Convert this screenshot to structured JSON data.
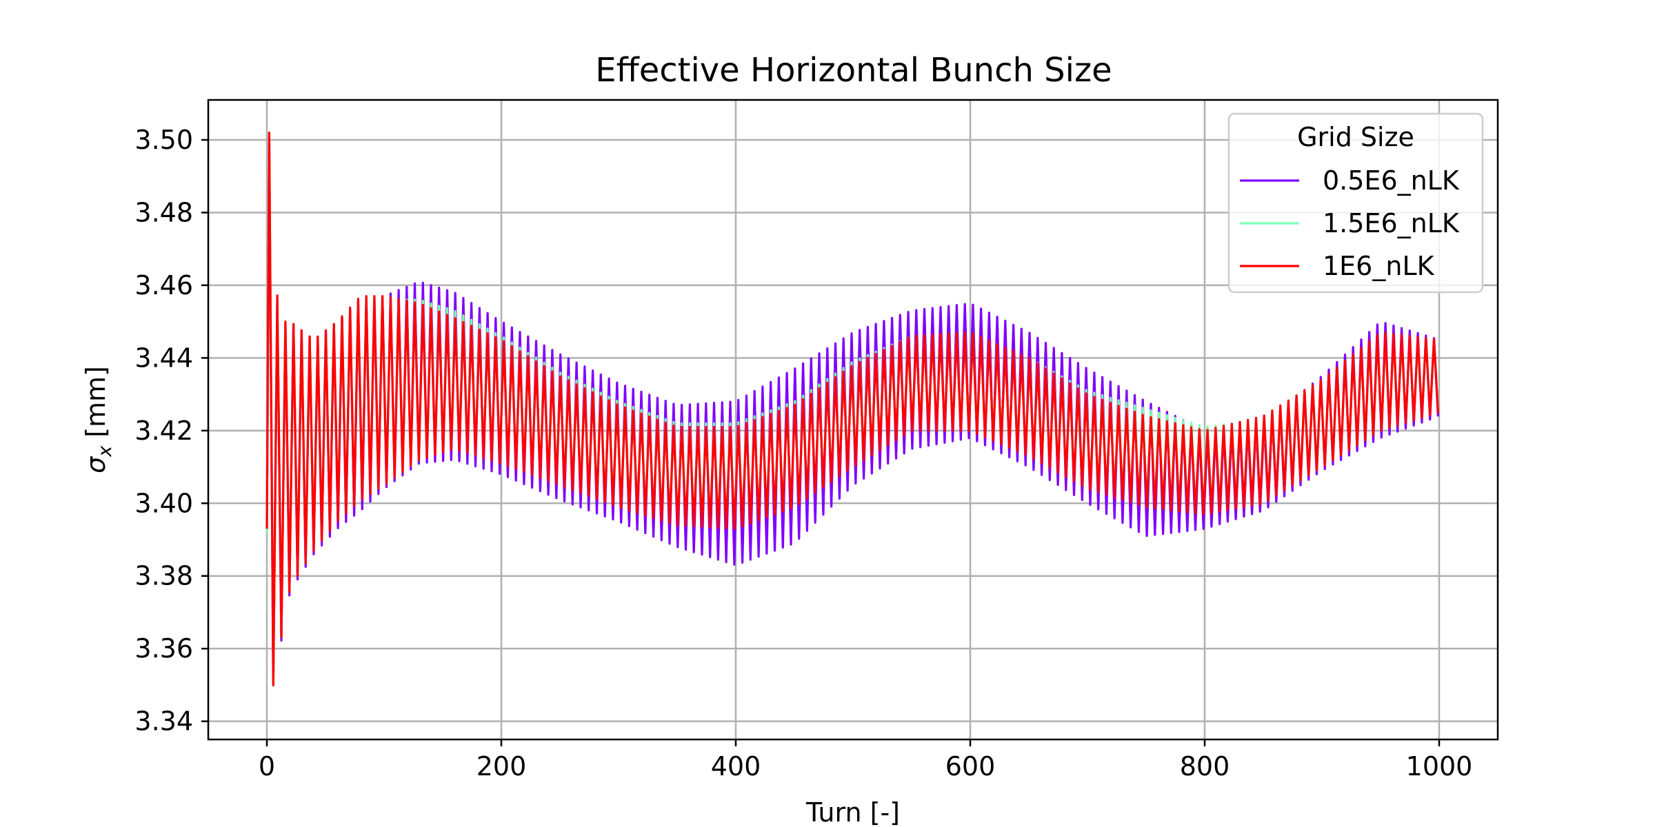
{
  "chart_data": {
    "type": "line",
    "title": "Effective Horizontal Bunch Size",
    "xlabel": "Turn [-]",
    "ylabel_symbol": "σ",
    "ylabel_sub": "x",
    "ylabel_unit": "[mm]",
    "xlim": [
      -50,
      1050
    ],
    "ylim": [
      3.335,
      3.511
    ],
    "xticks": [
      0,
      200,
      400,
      600,
      800,
      1000
    ],
    "xtick_labels": [
      "0",
      "200",
      "400",
      "600",
      "800",
      "1000"
    ],
    "yticks": [
      3.34,
      3.36,
      3.38,
      3.4,
      3.42,
      3.44,
      3.46,
      3.48,
      3.5
    ],
    "ytick_labels": [
      "3.34",
      "3.36",
      "3.38",
      "3.40",
      "3.42",
      "3.44",
      "3.46",
      "3.48",
      "3.50"
    ],
    "grid": true,
    "legend": {
      "title": "Grid Size",
      "placement": "top-right"
    },
    "oscillation_period_turns": 6.9,
    "series": [
      {
        "name": "0.5E6_nLK",
        "color": "#7f00ff",
        "start": {
          "x": 0,
          "y": 3.392
        },
        "envelope": [
          {
            "x": 2,
            "upper": 3.5,
            "lower": 3.345
          },
          {
            "x": 10,
            "upper": 3.449,
            "lower": 3.358
          },
          {
            "x": 20,
            "upper": 3.45,
            "lower": 3.376
          },
          {
            "x": 40,
            "upper": 3.445,
            "lower": 3.386
          },
          {
            "x": 60,
            "upper": 3.45,
            "lower": 3.393
          },
          {
            "x": 80,
            "upper": 3.456,
            "lower": 3.398
          },
          {
            "x": 100,
            "upper": 3.457,
            "lower": 3.404
          },
          {
            "x": 130,
            "upper": 3.461,
            "lower": 3.411
          },
          {
            "x": 160,
            "upper": 3.458,
            "lower": 3.412
          },
          {
            "x": 200,
            "upper": 3.45,
            "lower": 3.408
          },
          {
            "x": 250,
            "upper": 3.441,
            "lower": 3.401
          },
          {
            "x": 300,
            "upper": 3.433,
            "lower": 3.395
          },
          {
            "x": 350,
            "upper": 3.427,
            "lower": 3.388
          },
          {
            "x": 400,
            "upper": 3.428,
            "lower": 3.383
          },
          {
            "x": 450,
            "upper": 3.437,
            "lower": 3.389
          },
          {
            "x": 500,
            "upper": 3.447,
            "lower": 3.405
          },
          {
            "x": 550,
            "upper": 3.453,
            "lower": 3.415
          },
          {
            "x": 600,
            "upper": 3.455,
            "lower": 3.418
          },
          {
            "x": 650,
            "upper": 3.447,
            "lower": 3.41
          },
          {
            "x": 700,
            "upper": 3.437,
            "lower": 3.4
          },
          {
            "x": 750,
            "upper": 3.428,
            "lower": 3.391
          },
          {
            "x": 800,
            "upper": 3.42,
            "lower": 3.393
          },
          {
            "x": 850,
            "upper": 3.422,
            "lower": 3.398
          },
          {
            "x": 900,
            "upper": 3.435,
            "lower": 3.409
          },
          {
            "x": 950,
            "upper": 3.45,
            "lower": 3.418
          },
          {
            "x": 1000,
            "upper": 3.445,
            "lower": 3.424
          }
        ]
      },
      {
        "name": "1.5E6_nLK",
        "color": "#80ffb4",
        "start": {
          "x": 0,
          "y": 3.392
        },
        "envelope": [
          {
            "x": 2,
            "upper": 3.501,
            "lower": 3.344
          },
          {
            "x": 10,
            "upper": 3.448,
            "lower": 3.36
          },
          {
            "x": 20,
            "upper": 3.449,
            "lower": 3.378
          },
          {
            "x": 40,
            "upper": 3.444,
            "lower": 3.388
          },
          {
            "x": 60,
            "upper": 3.449,
            "lower": 3.396
          },
          {
            "x": 80,
            "upper": 3.455,
            "lower": 3.402
          },
          {
            "x": 100,
            "upper": 3.456,
            "lower": 3.406
          },
          {
            "x": 130,
            "upper": 3.456,
            "lower": 3.412
          },
          {
            "x": 160,
            "upper": 3.453,
            "lower": 3.416
          },
          {
            "x": 200,
            "upper": 3.446,
            "lower": 3.412
          },
          {
            "x": 250,
            "upper": 3.436,
            "lower": 3.406
          },
          {
            "x": 300,
            "upper": 3.428,
            "lower": 3.4
          },
          {
            "x": 350,
            "upper": 3.422,
            "lower": 3.395
          },
          {
            "x": 400,
            "upper": 3.422,
            "lower": 3.394
          },
          {
            "x": 450,
            "upper": 3.428,
            "lower": 3.399
          },
          {
            "x": 500,
            "upper": 3.439,
            "lower": 3.411
          },
          {
            "x": 550,
            "upper": 3.446,
            "lower": 3.421
          },
          {
            "x": 600,
            "upper": 3.447,
            "lower": 3.421
          },
          {
            "x": 650,
            "upper": 3.44,
            "lower": 3.414
          },
          {
            "x": 700,
            "upper": 3.431,
            "lower": 3.404
          },
          {
            "x": 750,
            "upper": 3.426,
            "lower": 3.4
          },
          {
            "x": 800,
            "upper": 3.421,
            "lower": 3.398
          },
          {
            "x": 850,
            "upper": 3.423,
            "lower": 3.4
          },
          {
            "x": 900,
            "upper": 3.433,
            "lower": 3.41
          },
          {
            "x": 950,
            "upper": 3.446,
            "lower": 3.42
          },
          {
            "x": 1000,
            "upper": 3.444,
            "lower": 3.426
          }
        ]
      },
      {
        "name": "1E6_nLK",
        "color": "#ff0000",
        "start": {
          "x": 0,
          "y": 3.393
        },
        "envelope": [
          {
            "x": 2,
            "upper": 3.502,
            "lower": 3.343
          },
          {
            "x": 10,
            "upper": 3.45,
            "lower": 3.359
          },
          {
            "x": 20,
            "upper": 3.45,
            "lower": 3.377
          },
          {
            "x": 40,
            "upper": 3.445,
            "lower": 3.387
          },
          {
            "x": 60,
            "upper": 3.45,
            "lower": 3.395
          },
          {
            "x": 80,
            "upper": 3.457,
            "lower": 3.401
          },
          {
            "x": 100,
            "upper": 3.457,
            "lower": 3.405
          },
          {
            "x": 130,
            "upper": 3.455,
            "lower": 3.412
          },
          {
            "x": 160,
            "upper": 3.451,
            "lower": 3.415
          },
          {
            "x": 200,
            "upper": 3.445,
            "lower": 3.411
          },
          {
            "x": 250,
            "upper": 3.435,
            "lower": 3.405
          },
          {
            "x": 300,
            "upper": 3.427,
            "lower": 3.399
          },
          {
            "x": 350,
            "upper": 3.421,
            "lower": 3.394
          },
          {
            "x": 400,
            "upper": 3.421,
            "lower": 3.393
          },
          {
            "x": 450,
            "upper": 3.427,
            "lower": 3.399
          },
          {
            "x": 500,
            "upper": 3.438,
            "lower": 3.41
          },
          {
            "x": 550,
            "upper": 3.446,
            "lower": 3.42
          },
          {
            "x": 600,
            "upper": 3.447,
            "lower": 3.42
          },
          {
            "x": 650,
            "upper": 3.44,
            "lower": 3.413
          },
          {
            "x": 700,
            "upper": 3.43,
            "lower": 3.404
          },
          {
            "x": 750,
            "upper": 3.424,
            "lower": 3.399
          },
          {
            "x": 800,
            "upper": 3.42,
            "lower": 3.397
          },
          {
            "x": 850,
            "upper": 3.424,
            "lower": 3.4
          },
          {
            "x": 900,
            "upper": 3.434,
            "lower": 3.41
          },
          {
            "x": 950,
            "upper": 3.447,
            "lower": 3.42
          },
          {
            "x": 1000,
            "upper": 3.445,
            "lower": 3.425
          }
        ]
      }
    ]
  }
}
